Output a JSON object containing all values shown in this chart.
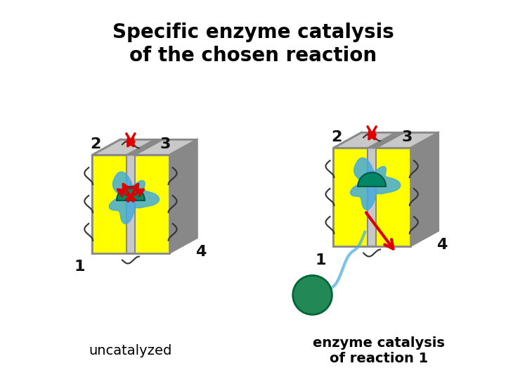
{
  "title_line1": "Specific enzyme catalysis",
  "title_line2": "of the chosen reaction",
  "title_fontsize": 20,
  "title_fontweight": "bold",
  "label_uncatalyzed": "uncatalyzed",
  "label_enzyme": "enzyme catalysis\nof reaction 1",
  "label_fontsize": 14,
  "bg_color": "#ffffff",
  "box_gray_light": "#c8c8c8",
  "box_gray_dark": "#888888",
  "box_yellow": "#ffff00",
  "arrow_red": "#dd0000",
  "blob_teal": "#008866",
  "blob_blue": "#44aadd",
  "num_color": "#111111",
  "num_fontsize": 16,
  "ball_color": "#228855"
}
